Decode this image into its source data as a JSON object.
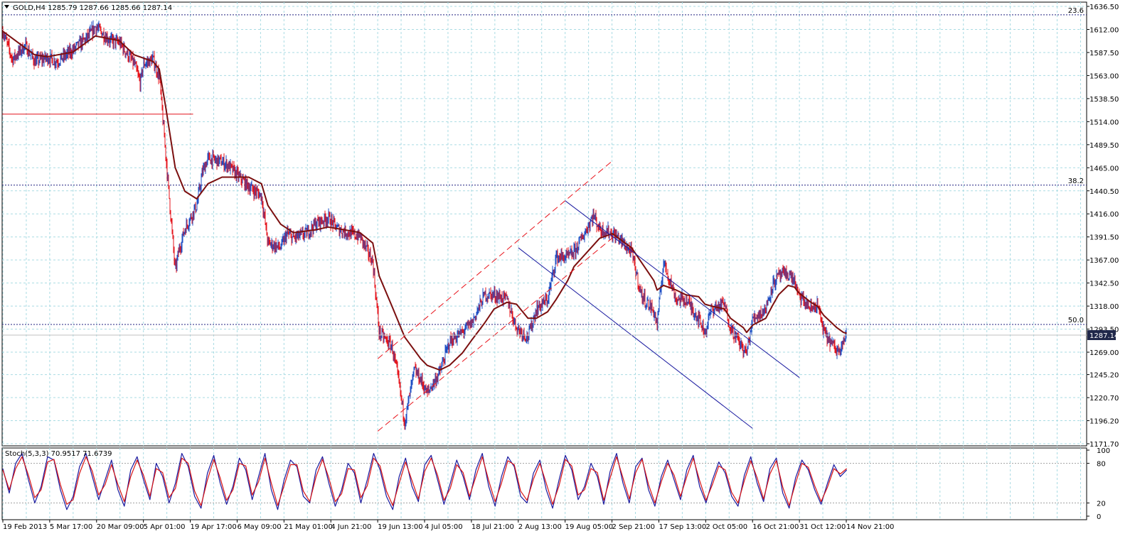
{
  "window": {
    "symbol_header": "GOLD,H4  1285.79 1287.66 1285.66 1287.14",
    "current_price_label": "1287.14"
  },
  "colors": {
    "grid": "#a9dbe3",
    "candle_up": "#1f4fc4",
    "candle_down": "#e4141c",
    "ma": "#7b0f0f",
    "fib": "#202080",
    "up_channel": "#e8141c",
    "down_channel": "#1a1aa0",
    "stoch_main": "#1a1aa0",
    "stoch_signal": "#d81414",
    "price_box": "#20284a"
  },
  "chart_data": [
    {
      "type": "candlestick",
      "title": "GOLD,H4",
      "ohlc_header": {
        "open": 1285.79,
        "high": 1287.66,
        "low": 1285.66,
        "close": 1287.14
      },
      "y_tick_labels": [
        "1636.50",
        "1612.00",
        "1587.50",
        "1563.00",
        "1538.50",
        "1514.00",
        "1489.50",
        "1465.00",
        "1440.50",
        "1416.00",
        "1391.50",
        "1367.00",
        "1342.50",
        "1318.00",
        "1293.50",
        "1269.00",
        "1245.20",
        "1220.70",
        "1196.20",
        "1171.70"
      ],
      "ylim": [
        1171.7,
        1636.5
      ],
      "x_tick_labels": [
        "19 Feb 2013",
        "5 Mar 17:00",
        "20 Mar 09:00",
        "5 Apr 01:00",
        "19 Apr 17:00",
        "6 May 09:00",
        "21 May 01:00",
        "4 Jun 21:00",
        "19 Jun 13:00",
        "4 Jul 05:00",
        "18 Jul 21:00",
        "2 Aug 13:00",
        "19 Aug 05:00",
        "2 Sep 21:00",
        "17 Sep 13:00",
        "2 Oct 05:00",
        "16 Oct 21:00",
        "31 Oct 12:00",
        "14 Nov 21:00"
      ],
      "price_path": [
        [
          "19 Feb 2013",
          1610
        ],
        [
          "22 Feb",
          1580
        ],
        [
          "26 Feb",
          1595
        ],
        [
          "1 Mar",
          1578
        ],
        [
          "5 Mar",
          1582
        ],
        [
          "8 Mar",
          1578
        ],
        [
          "13 Mar",
          1590
        ],
        [
          "18 Mar",
          1605
        ],
        [
          "20 Mar",
          1615
        ],
        [
          "25 Mar",
          1600
        ],
        [
          "28 Mar",
          1598
        ],
        [
          "2 Apr",
          1575
        ],
        [
          "4 Apr",
          1555
        ],
        [
          "5 Apr",
          1575
        ],
        [
          "8 Apr",
          1580
        ],
        [
          "10 Apr",
          1562
        ],
        [
          "12 Apr",
          1480
        ],
        [
          "15 Apr",
          1355
        ],
        [
          "16 Apr",
          1375
        ],
        [
          "18 Apr",
          1400
        ],
        [
          "22 Apr",
          1425
        ],
        [
          "24 Apr",
          1460
        ],
        [
          "26 Apr",
          1475
        ],
        [
          "30 Apr",
          1472
        ],
        [
          "3 May",
          1468
        ],
        [
          "7 May",
          1455
        ],
        [
          "10 May",
          1445
        ],
        [
          "14 May",
          1435
        ],
        [
          "16 May",
          1385
        ],
        [
          "20 May",
          1380
        ],
        [
          "22 May",
          1395
        ],
        [
          "24 May",
          1390
        ],
        [
          "28 May",
          1395
        ],
        [
          "31 May",
          1405
        ],
        [
          "4 Jun",
          1412
        ],
        [
          "7 Jun",
          1400
        ],
        [
          "11 Jun",
          1395
        ],
        [
          "14 Jun",
          1392
        ],
        [
          "18 Jun",
          1365
        ],
        [
          "20 Jun",
          1290
        ],
        [
          "24 Jun",
          1275
        ],
        [
          "26 Jun",
          1240
        ],
        [
          "28 Jun",
          1195
        ],
        [
          "1 Jul",
          1250
        ],
        [
          "3 Jul",
          1240
        ],
        [
          "5 Jul",
          1225
        ],
        [
          "9 Jul",
          1248
        ],
        [
          "12 Jul",
          1280
        ],
        [
          "16 Jul",
          1290
        ],
        [
          "19 Jul",
          1300
        ],
        [
          "23 Jul",
          1330
        ],
        [
          "26 Jul",
          1330
        ],
        [
          "30 Jul",
          1325
        ],
        [
          "2 Aug",
          1295
        ],
        [
          "6 Aug",
          1285
        ],
        [
          "9 Aug",
          1315
        ],
        [
          "13 Aug",
          1325
        ],
        [
          "16 Aug",
          1370
        ],
        [
          "20 Aug",
          1370
        ],
        [
          "22 Aug",
          1375
        ],
        [
          "26 Aug",
          1400
        ],
        [
          "28 Aug",
          1415
        ],
        [
          "30 Aug",
          1400
        ],
        [
          "3 Sep",
          1395
        ],
        [
          "5 Sep",
          1390
        ],
        [
          "9 Sep",
          1375
        ],
        [
          "12 Sep",
          1330
        ],
        [
          "16 Sep",
          1312
        ],
        [
          "17 Sep",
          1298
        ],
        [
          "19 Sep",
          1365
        ],
        [
          "23 Sep",
          1325
        ],
        [
          "26 Sep",
          1325
        ],
        [
          "30 Sep",
          1305
        ],
        [
          "2 Oct",
          1290
        ],
        [
          "4 Oct",
          1315
        ],
        [
          "8 Oct",
          1320
        ],
        [
          "10 Oct",
          1295
        ],
        [
          "14 Oct",
          1272
        ],
        [
          "15 Oct",
          1268
        ],
        [
          "17 Oct",
          1305
        ],
        [
          "21 Oct",
          1315
        ],
        [
          "23 Oct",
          1340
        ],
        [
          "25 Oct",
          1350
        ],
        [
          "28 Oct",
          1352
        ],
        [
          "30 Oct",
          1345
        ],
        [
          "31 Oct",
          1330
        ],
        [
          "4 Nov",
          1315
        ],
        [
          "6 Nov",
          1320
        ],
        [
          "8 Nov",
          1290
        ],
        [
          "12 Nov",
          1270
        ],
        [
          "14 Nov",
          1282
        ],
        [
          "15 Nov",
          1287.14
        ]
      ],
      "moving_average": [
        [
          "19 Feb 2013",
          1610
        ],
        [
          "1 Mar",
          1585
        ],
        [
          "5 Mar",
          1583
        ],
        [
          "13 Mar",
          1588
        ],
        [
          "20 Mar",
          1605
        ],
        [
          "28 Mar",
          1600
        ],
        [
          "2 Apr",
          1585
        ],
        [
          "8 Apr",
          1578
        ],
        [
          "10 Apr",
          1570
        ],
        [
          "12 Apr",
          1530
        ],
        [
          "15 Apr",
          1465
        ],
        [
          "18 Apr",
          1440
        ],
        [
          "22 Apr",
          1432
        ],
        [
          "26 Apr",
          1448
        ],
        [
          "1 May",
          1455
        ],
        [
          "7 May",
          1455
        ],
        [
          "10 May",
          1455
        ],
        [
          "14 May",
          1448
        ],
        [
          "16 May",
          1425
        ],
        [
          "20 May",
          1405
        ],
        [
          "24 May",
          1396
        ],
        [
          "31 May",
          1399
        ],
        [
          "4 Jun",
          1402
        ],
        [
          "11 Jun",
          1398
        ],
        [
          "14 Jun",
          1396
        ],
        [
          "18 Jun",
          1385
        ],
        [
          "20 Jun",
          1350
        ],
        [
          "24 Jun",
          1318
        ],
        [
          "28 Jun",
          1285
        ],
        [
          "3 Jul",
          1262
        ],
        [
          "5 Jul",
          1255
        ],
        [
          "9 Jul",
          1250
        ],
        [
          "12 Jul",
          1255
        ],
        [
          "16 Jul",
          1268
        ],
        [
          "19 Jul",
          1282
        ],
        [
          "23 Jul",
          1300
        ],
        [
          "26 Jul",
          1315
        ],
        [
          "30 Jul",
          1322
        ],
        [
          "2 Aug",
          1320
        ],
        [
          "6 Aug",
          1305
        ],
        [
          "9 Aug",
          1305
        ],
        [
          "13 Aug",
          1312
        ],
        [
          "16 Aug",
          1325
        ],
        [
          "20 Aug",
          1345
        ],
        [
          "22 Aug",
          1360
        ],
        [
          "26 Aug",
          1375
        ],
        [
          "30 Aug",
          1390
        ],
        [
          "3 Sep",
          1395
        ],
        [
          "5 Sep",
          1390
        ],
        [
          "9 Sep",
          1380
        ],
        [
          "12 Sep",
          1365
        ],
        [
          "16 Sep",
          1345
        ],
        [
          "17 Sep",
          1335
        ],
        [
          "19 Sep",
          1340
        ],
        [
          "23 Sep",
          1335
        ],
        [
          "26 Sep",
          1330
        ],
        [
          "30 Sep",
          1328
        ],
        [
          "2 Oct",
          1320
        ],
        [
          "4 Oct",
          1318
        ],
        [
          "8 Oct",
          1315
        ],
        [
          "10 Oct",
          1305
        ],
        [
          "14 Oct",
          1295
        ],
        [
          "15 Oct",
          1290
        ],
        [
          "17 Oct",
          1298
        ],
        [
          "21 Oct",
          1305
        ],
        [
          "23 Oct",
          1318
        ],
        [
          "25 Oct",
          1330
        ],
        [
          "28 Oct",
          1340
        ],
        [
          "30 Oct",
          1338
        ],
        [
          "31 Oct",
          1333
        ],
        [
          "4 Nov",
          1322
        ],
        [
          "6 Nov",
          1318
        ],
        [
          "8 Nov",
          1308
        ],
        [
          "12 Nov",
          1295
        ],
        [
          "14 Nov",
          1290
        ],
        [
          "15 Nov",
          1289
        ]
      ],
      "fibonacci_levels": [
        {
          "label": "23.6",
          "price": 1627.5
        },
        {
          "label": "38.2",
          "price": 1446.5
        },
        {
          "label": "50.0",
          "price": 1298.5
        }
      ],
      "horizontal_line": {
        "price": 1522,
        "from": "19 Feb 2013",
        "to": "19 Apr 17:00"
      },
      "ascending_channel": {
        "lines": [
          [
            [
              "19 Jun 13:00",
              1262
            ],
            [
              "2 Sep 21:00",
              1472
            ]
          ],
          [
            [
              "19 Jun 13:00",
              1185
            ],
            [
              "2 Sep 21:00",
              1390
            ]
          ]
        ]
      },
      "descending_channel": {
        "lines": [
          [
            [
              "19 Aug 05:00",
              1430
            ],
            [
              "31 Oct 12:00",
              1242
            ]
          ],
          [
            [
              "2 Aug 13:00",
              1380
            ],
            [
              "16 Oct 21:00",
              1188
            ]
          ]
        ]
      }
    },
    {
      "type": "line",
      "title": "Stoch(5,3,3)",
      "header": "Stoch(5,3,3) 70.9517 71.6739",
      "values": {
        "main": 70.9517,
        "signal": 71.6739
      },
      "y_tick_labels": [
        "100",
        "80",
        "20",
        "0"
      ],
      "ylim": [
        0,
        100
      ],
      "levels": [
        80,
        20
      ],
      "series": [
        {
          "values": [
            72,
            35,
            80,
            95,
            55,
            20,
            45,
            90,
            85,
            40,
            10,
            30,
            75,
            95,
            60,
            25,
            55,
            85,
            40,
            15,
            70,
            90,
            55,
            25,
            80,
            60,
            20,
            50,
            95,
            75,
            30,
            12,
            65,
            92,
            50,
            18,
            45,
            88,
            70,
            25,
            60,
            95,
            40,
            10,
            55,
            85,
            75,
            30,
            20,
            70,
            90,
            50,
            15,
            40,
            80,
            65,
            20,
            55,
            95,
            70,
            30,
            10,
            60,
            88,
            45,
            22,
            78,
            92,
            55,
            18,
            50,
            85,
            60,
            25,
            70,
            95,
            45,
            15,
            60,
            90,
            75,
            30,
            20,
            65,
            85,
            40,
            12,
            55,
            92,
            70,
            25,
            45,
            80,
            60,
            18,
            68,
            95,
            50,
            20,
            75,
            88,
            40,
            15,
            60,
            85,
            55,
            25,
            70,
            92,
            45,
            20,
            55,
            82,
            65,
            30,
            15,
            62,
            90,
            50,
            22,
            72,
            88,
            35,
            12,
            58,
            85,
            70,
            40,
            18,
            50,
            78,
            60,
            70
          ]
        },
        {
          "values": [
            70,
            40,
            72,
            90,
            62,
            28,
            40,
            82,
            86,
            48,
            18,
            25,
            65,
            90,
            68,
            32,
            48,
            78,
            48,
            22,
            60,
            85,
            62,
            30,
            72,
            66,
            28,
            42,
            88,
            80,
            38,
            16,
            55,
            86,
            58,
            24,
            40,
            80,
            76,
            32,
            52,
            88,
            50,
            16,
            46,
            78,
            78,
            38,
            22,
            60,
            86,
            58,
            22,
            34,
            72,
            70,
            28,
            46,
            88,
            76,
            38,
            16,
            50,
            82,
            54,
            26,
            68,
            88,
            62,
            24,
            42,
            78,
            66,
            30,
            60,
            90,
            54,
            22,
            50,
            84,
            78,
            38,
            24,
            56,
            80,
            50,
            18,
            46,
            86,
            76,
            32,
            40,
            72,
            66,
            24,
            58,
            90,
            58,
            26,
            66,
            86,
            48,
            20,
            52,
            80,
            62,
            30,
            60,
            88,
            54,
            24,
            48,
            76,
            70,
            36,
            20,
            54,
            84,
            58,
            26,
            64,
            84,
            44,
            16,
            50,
            80,
            74,
            46,
            22,
            44,
            72,
            64,
            72
          ]
        }
      ]
    }
  ]
}
